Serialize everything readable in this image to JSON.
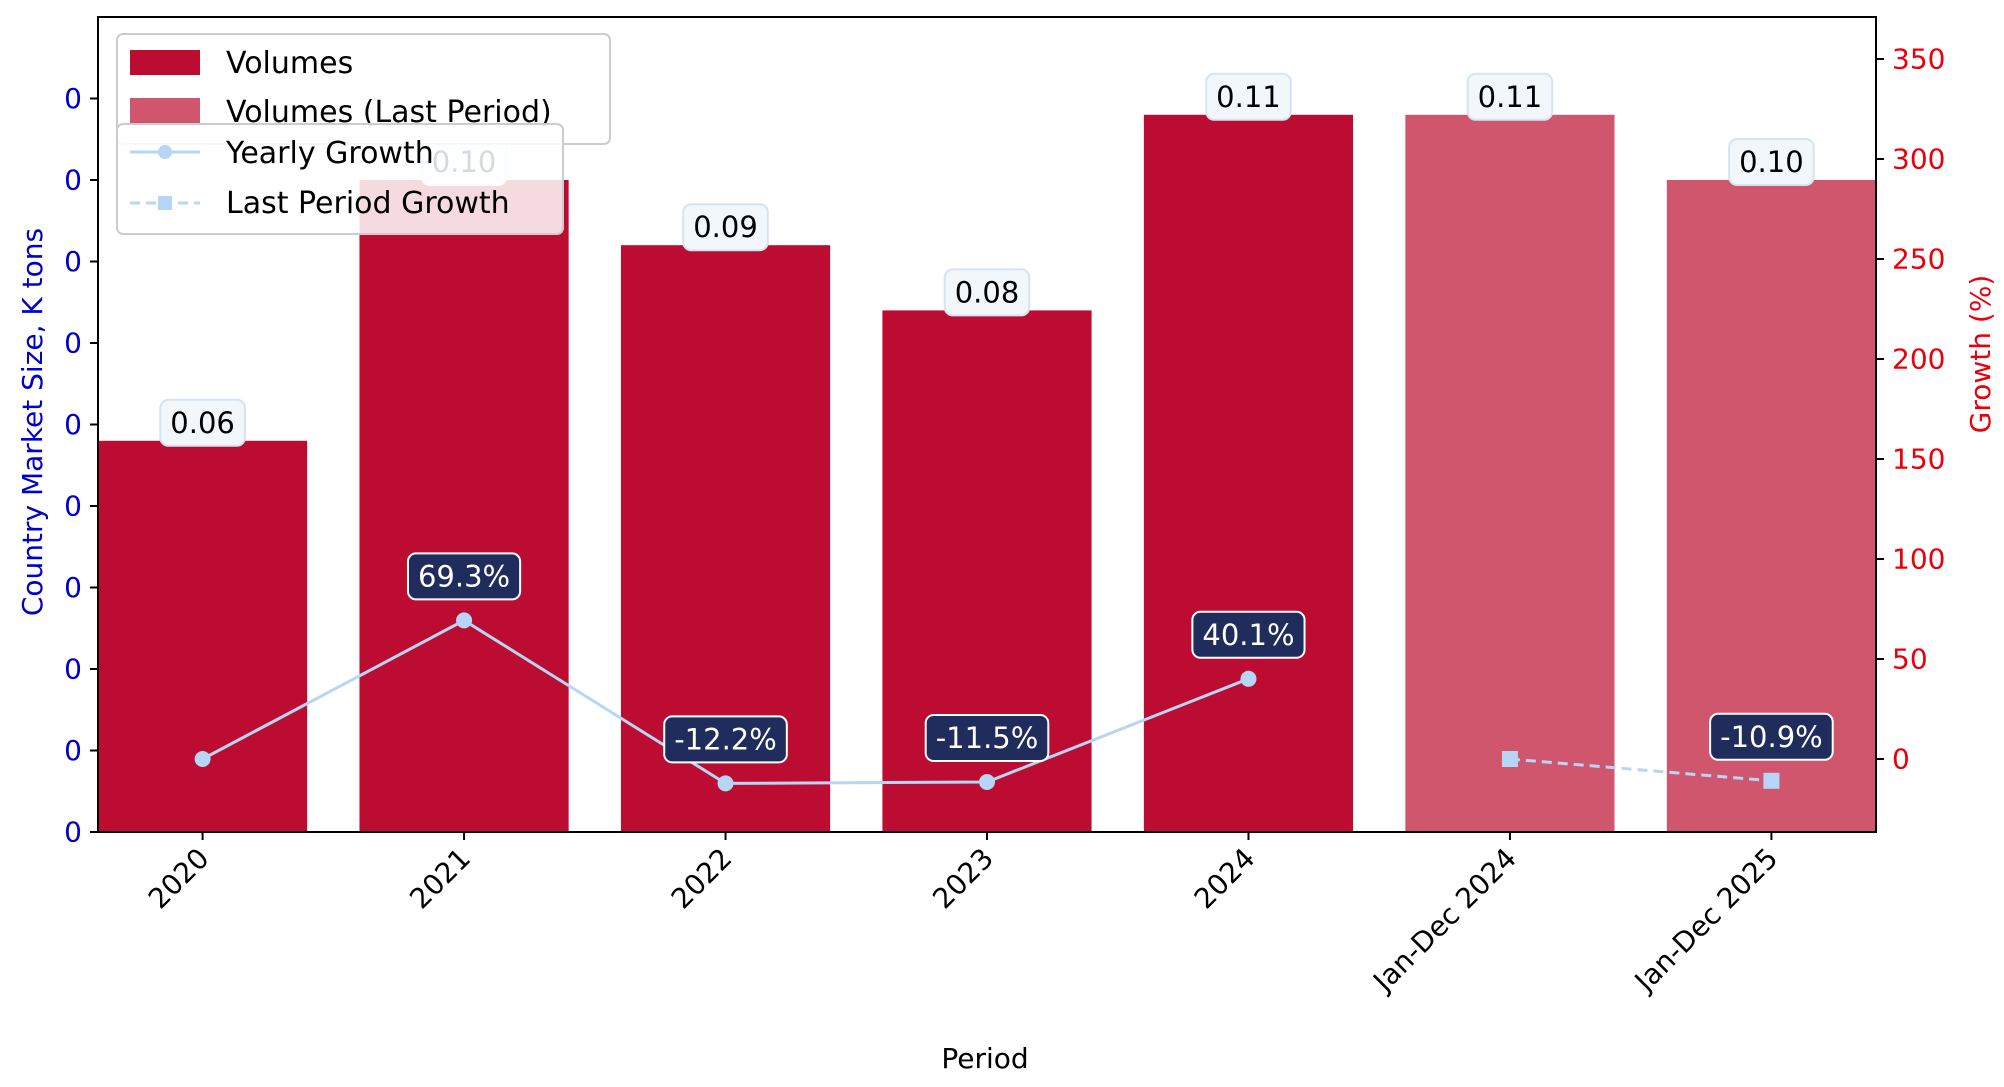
{
  "chart_data": {
    "type": "bar",
    "categories": [
      "2020",
      "2021",
      "2022",
      "2023",
      "2024",
      "Jan-Dec 2024",
      "Jan-Dec 2025"
    ],
    "series": [
      {
        "name": "Volumes",
        "values": [
          0.06,
          0.1,
          0.09,
          0.08,
          0.11,
          null,
          null
        ],
        "color": "#bc0c32"
      },
      {
        "name": "Volumes (Last Period)",
        "values": [
          null,
          null,
          null,
          null,
          null,
          0.11,
          0.1
        ],
        "color": "#d0566d"
      }
    ],
    "bar_labels": [
      "0.06",
      "0.10",
      "0.09",
      "0.08",
      "0.11",
      "0.11",
      "0.10"
    ],
    "growth_series": [
      {
        "name": "Yearly Growth",
        "values": [
          0,
          69.3,
          -12.2,
          -11.5,
          40.1,
          null,
          null
        ],
        "labels": [
          "",
          "69.3%",
          "-12.2%",
          "-11.5%",
          "40.1%",
          "",
          ""
        ],
        "color": "#b7d6f5",
        "marker": "circle",
        "style": "solid"
      },
      {
        "name": "Last Period Growth",
        "values": [
          null,
          null,
          null,
          null,
          null,
          0,
          -10.9
        ],
        "labels": [
          "",
          "",
          "",
          "",
          "",
          "",
          "-10.9%"
        ],
        "color": "#b7d6f5",
        "marker": "square",
        "style": "dashed"
      }
    ],
    "xlabel": "Period",
    "ylabel_left": "Country Market Size, K tons",
    "ylabel_right": "Growth (%)",
    "left_axis": {
      "ylim": [
        0,
        0.125
      ],
      "tick_values": [
        0,
        0.0125,
        0.025,
        0.0375,
        0.05,
        0.0625,
        0.075,
        0.0875,
        0.1,
        0.1125
      ],
      "tick_labels": [
        "0",
        "0",
        "0",
        "0",
        "0",
        "0",
        "0",
        "0",
        "0",
        "0"
      ],
      "color": "#0000cc"
    },
    "right_axis": {
      "ylim": [
        -36.5,
        371
      ],
      "tick_values": [
        0,
        50,
        100,
        150,
        200,
        250,
        300,
        350
      ],
      "tick_labels": [
        "0",
        "50",
        "100",
        "150",
        "200",
        "250",
        "300",
        "350"
      ],
      "color": "#e8000b"
    },
    "legend_placement": "top-left",
    "grid": false,
    "label_box_colors": {
      "volume": "#f2f7fc",
      "growth": "#1f2c5c"
    }
  }
}
